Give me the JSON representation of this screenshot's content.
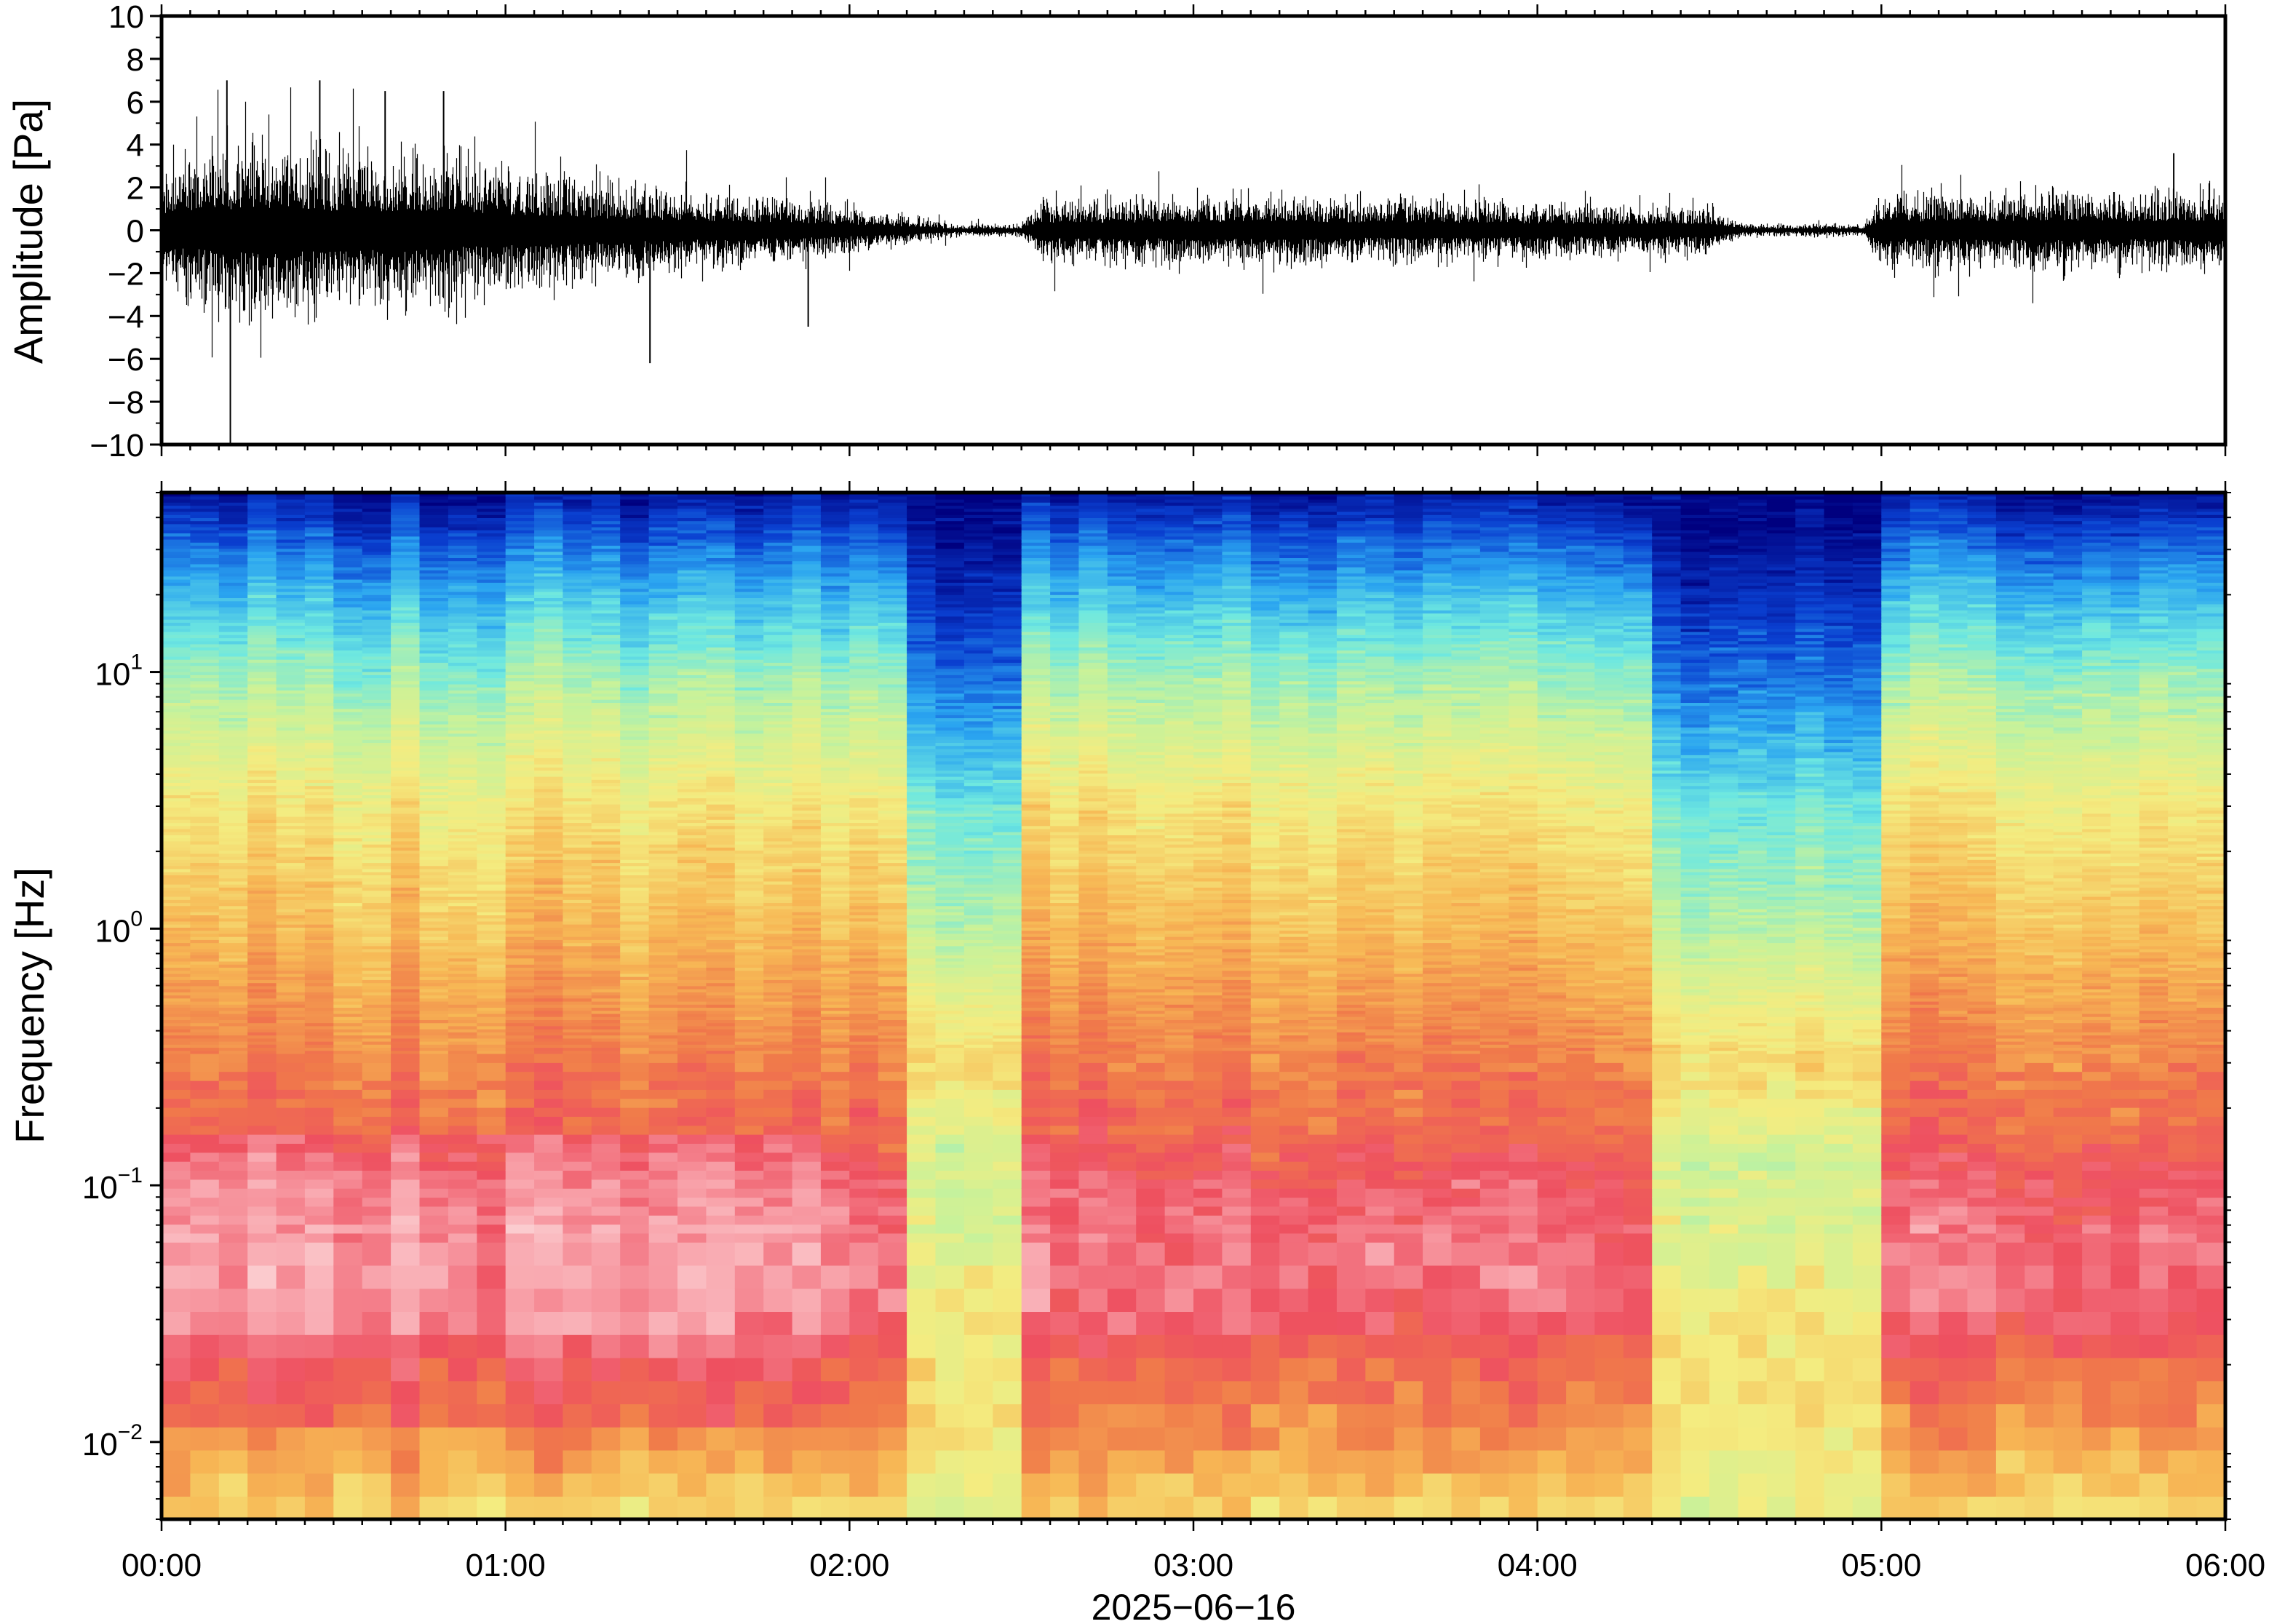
{
  "chart_data": [
    {
      "type": "line",
      "ylabel": "Amplitude [Pa]",
      "ylim": [
        -10,
        10
      ],
      "yticks": [
        -10,
        -8,
        -6,
        -4,
        -2,
        0,
        2,
        4,
        6,
        8,
        10
      ],
      "ytick_labels": [
        "−10",
        "−8",
        "−6",
        "−4",
        "−2",
        "0",
        "2",
        "4",
        "6",
        "8",
        "10"
      ],
      "x_range_hours": [
        0,
        6
      ],
      "grid": false,
      "series_color": "#000000",
      "envelope": {
        "x_hours": [
          0.0,
          0.25,
          0.5,
          0.75,
          1.0,
          1.25,
          1.5,
          1.75,
          2.0,
          2.2,
          2.3,
          2.5,
          2.55,
          2.75,
          3.0,
          3.25,
          3.5,
          3.75,
          4.0,
          4.25,
          4.5,
          4.6,
          4.75,
          4.95,
          5.0,
          5.25,
          5.5,
          5.75,
          6.0
        ],
        "amplitude_pa": [
          2.0,
          3.0,
          2.6,
          2.4,
          2.0,
          1.6,
          1.3,
          1.1,
          0.8,
          0.4,
          0.2,
          0.2,
          1.0,
          1.0,
          1.1,
          1.2,
          1.0,
          1.0,
          0.9,
          0.8,
          0.8,
          0.2,
          0.2,
          0.2,
          1.1,
          1.2,
          1.3,
          1.2,
          1.3
        ]
      },
      "peaks": [
        {
          "x_hours": 0.19,
          "value": 7.0
        },
        {
          "x_hours": 0.2,
          "value": -10.0
        },
        {
          "x_hours": 0.46,
          "value": 7.0
        },
        {
          "x_hours": 0.65,
          "value": 6.5
        },
        {
          "x_hours": 0.82,
          "value": 6.5
        },
        {
          "x_hours": 1.42,
          "value": -6.2
        },
        {
          "x_hours": 1.88,
          "value": -4.5
        },
        {
          "x_hours": 5.85,
          "value": 3.6
        }
      ]
    },
    {
      "type": "heatmap",
      "ylabel": "Frequency [Hz]",
      "xlabel": "2025−06−16",
      "y_scale": "log",
      "ylim": [
        0.005,
        50
      ],
      "ytick_values": [
        0.01,
        0.1,
        1,
        10
      ],
      "ytick_base": "10",
      "ytick_exponents": [
        "−2",
        "−1",
        "0",
        "1"
      ],
      "x_range_hours": [
        0,
        6
      ],
      "xtick_labels": [
        "00:00",
        "01:00",
        "02:00",
        "03:00",
        "04:00",
        "05:00",
        "06:00"
      ],
      "colormap": [
        "#00007f",
        "#0a3fd0",
        "#2aa4f0",
        "#6ee8e0",
        "#c8f29a",
        "#f4ec80",
        "#f7b855",
        "#f07a4a",
        "#ee5060",
        "#f8a0a8",
        "#fcd6d8"
      ],
      "quiet_intervals_hours": [
        [
          2.2,
          2.52
        ],
        [
          4.3,
          4.98
        ]
      ],
      "power_profile": {
        "freq_hz": [
          0.005,
          0.01,
          0.02,
          0.03,
          0.05,
          0.1,
          0.15,
          0.3,
          1,
          3,
          10,
          20,
          30,
          50
        ],
        "normal_level": [
          0.55,
          0.66,
          0.74,
          0.83,
          0.86,
          0.82,
          0.76,
          0.7,
          0.6,
          0.52,
          0.36,
          0.24,
          0.16,
          0.04
        ],
        "quiet_level": [
          0.45,
          0.5,
          0.52,
          0.5,
          0.46,
          0.42,
          0.44,
          0.54,
          0.38,
          0.3,
          0.14,
          0.07,
          0.03,
          0.0
        ]
      }
    }
  ]
}
